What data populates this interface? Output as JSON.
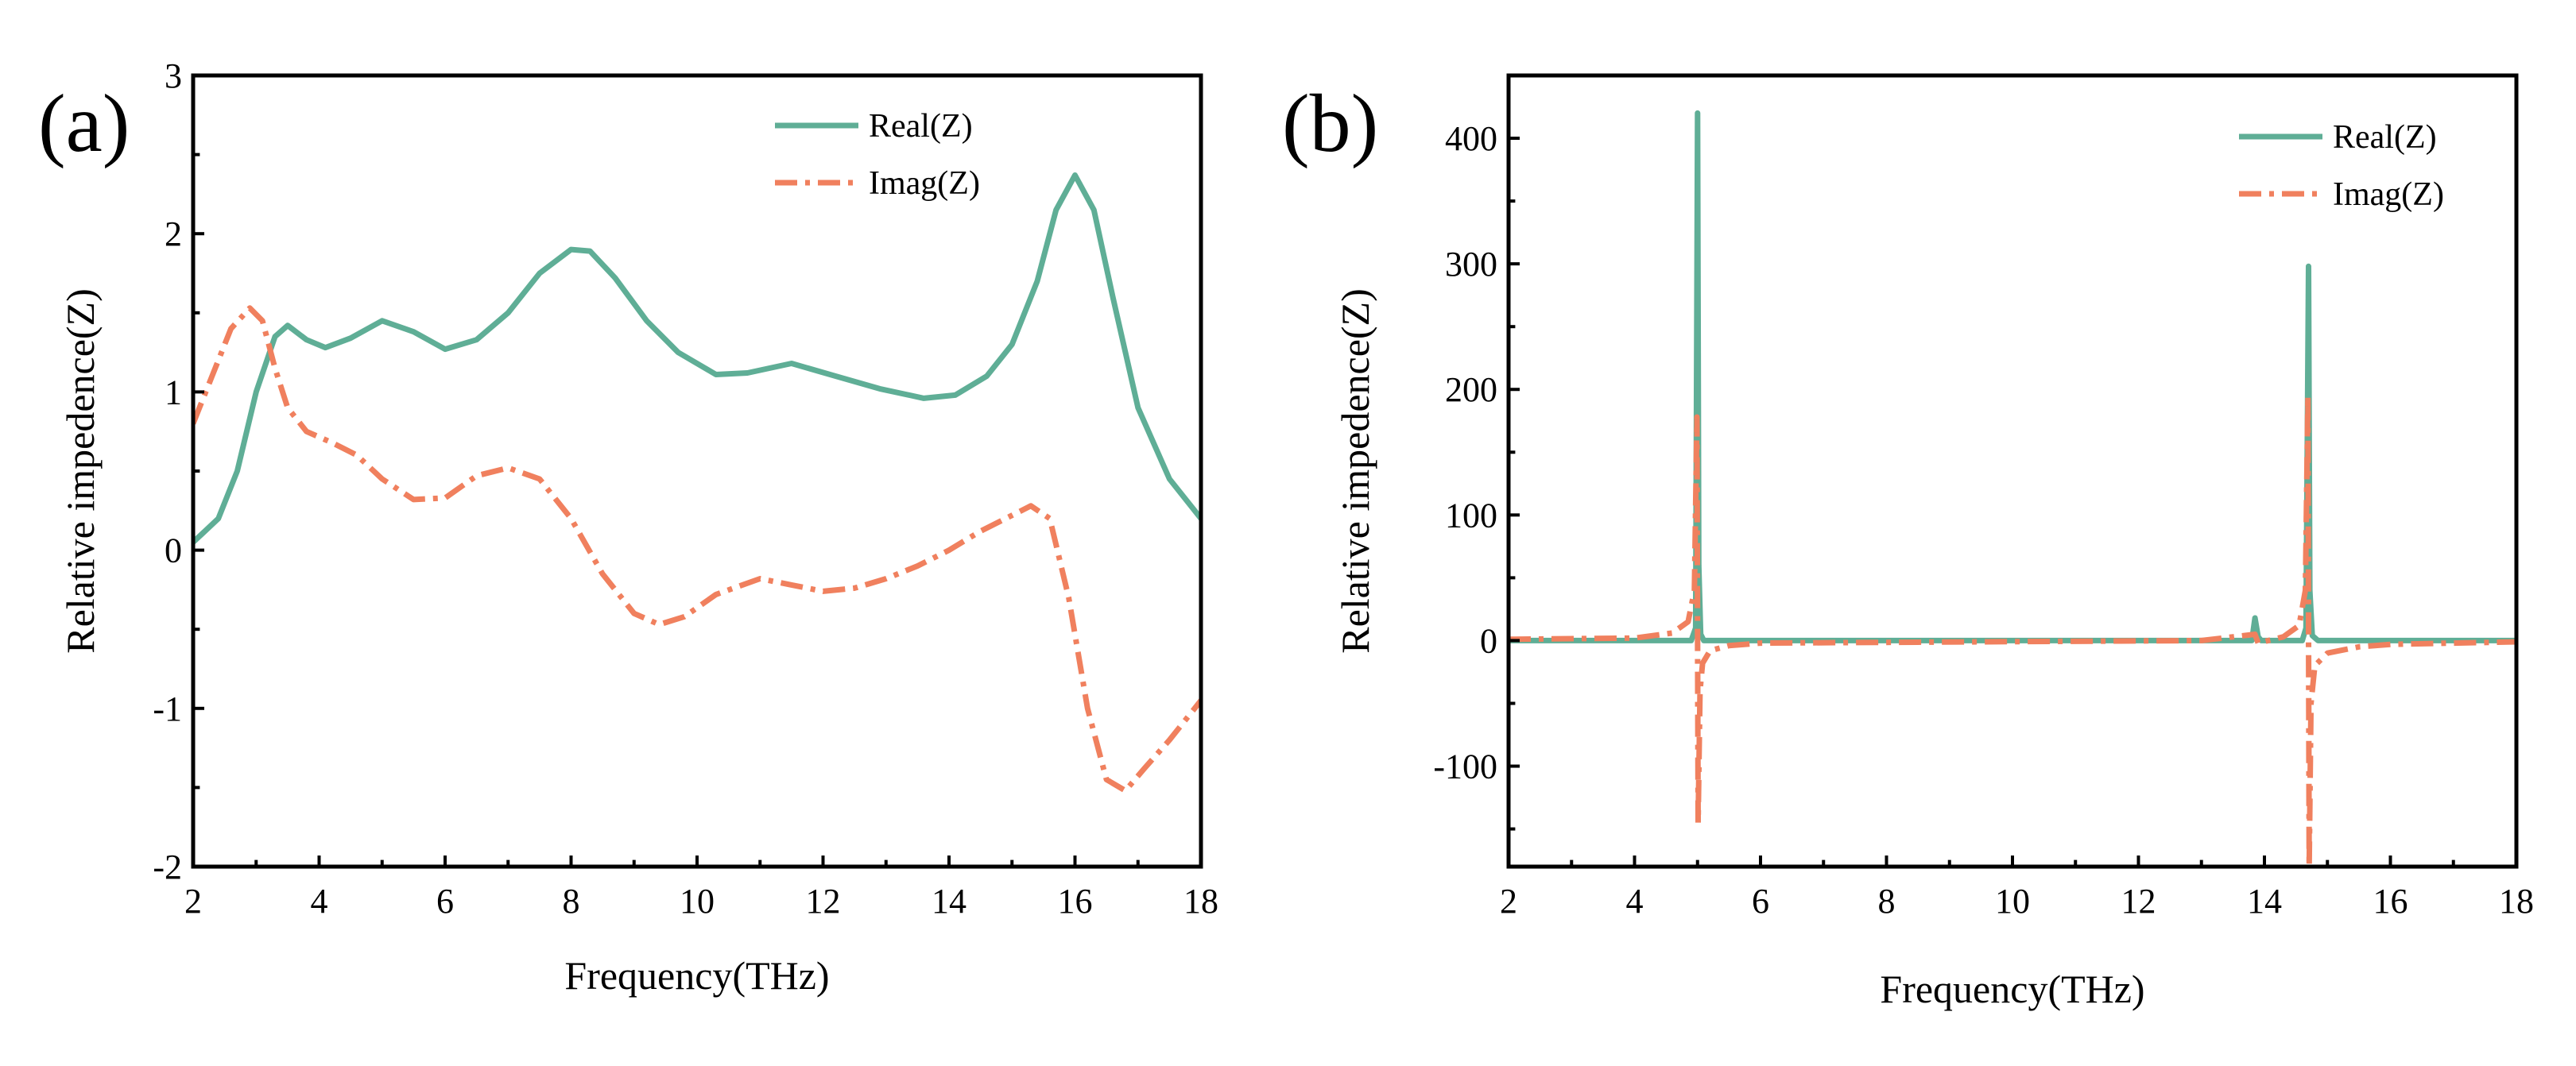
{
  "chart_data": [
    {
      "type": "line",
      "panel_label": "(a)",
      "xlabel": "Frequency(THz)",
      "ylabel": "Relative impedence(Z)",
      "xlim": [
        2,
        18
      ],
      "ylim": [
        -2,
        3
      ],
      "xticks": [
        2,
        4,
        6,
        8,
        10,
        12,
        14,
        16,
        18
      ],
      "yticks": [
        -2,
        -1,
        0,
        1,
        2,
        3
      ],
      "xtick_labels": [
        "2",
        "4",
        "6",
        "8",
        "10",
        "12",
        "14",
        "16",
        "18"
      ],
      "ytick_labels": [
        "-2",
        "-1",
        "0",
        "1",
        "2",
        "3"
      ],
      "legend_position": "top-right",
      "series": [
        {
          "name": "Real(Z)",
          "color": "#5fae96",
          "style": "solid",
          "x": [
            2.0,
            2.4,
            2.7,
            3.0,
            3.3,
            3.5,
            3.8,
            4.1,
            4.5,
            5.0,
            5.5,
            6.0,
            6.5,
            7.0,
            7.5,
            8.0,
            8.3,
            8.7,
            9.2,
            9.7,
            10.3,
            10.8,
            11.5,
            12.2,
            12.9,
            13.6,
            14.1,
            14.6,
            15.0,
            15.4,
            15.7,
            16.0,
            16.3,
            16.6,
            17.0,
            17.5,
            18.0
          ],
          "values": [
            0.05,
            0.2,
            0.5,
            1.0,
            1.35,
            1.42,
            1.33,
            1.28,
            1.34,
            1.45,
            1.38,
            1.27,
            1.33,
            1.5,
            1.75,
            1.9,
            1.89,
            1.72,
            1.45,
            1.25,
            1.11,
            1.12,
            1.18,
            1.1,
            1.02,
            0.96,
            0.98,
            1.1,
            1.3,
            1.7,
            2.15,
            2.37,
            2.15,
            1.6,
            0.9,
            0.45,
            0.2
          ]
        },
        {
          "name": "Imag(Z)",
          "color": "#f0805e",
          "style": "dashdot",
          "x": [
            2.0,
            2.3,
            2.6,
            2.9,
            3.1,
            3.3,
            3.5,
            3.8,
            4.2,
            4.6,
            5.0,
            5.5,
            6.0,
            6.5,
            7.0,
            7.5,
            8.0,
            8.5,
            9.0,
            9.4,
            9.8,
            10.3,
            11.0,
            11.5,
            12.0,
            12.5,
            13.0,
            13.5,
            14.0,
            14.5,
            15.0,
            15.3,
            15.6,
            15.9,
            16.2,
            16.5,
            16.8,
            17.1,
            17.5,
            18.0
          ],
          "values": [
            0.8,
            1.1,
            1.4,
            1.53,
            1.45,
            1.15,
            0.9,
            0.75,
            0.68,
            0.6,
            0.45,
            0.32,
            0.33,
            0.47,
            0.52,
            0.45,
            0.2,
            -0.15,
            -0.4,
            -0.47,
            -0.42,
            -0.28,
            -0.18,
            -0.22,
            -0.26,
            -0.24,
            -0.18,
            -0.1,
            0.0,
            0.12,
            0.22,
            0.28,
            0.2,
            -0.3,
            -1.0,
            -1.45,
            -1.52,
            -1.38,
            -1.2,
            -0.95
          ]
        }
      ]
    },
    {
      "type": "line",
      "panel_label": "(b)",
      "xlabel": "Frequency(THz)",
      "ylabel": "Relative impedence(Z)",
      "xlim": [
        2,
        18
      ],
      "ylim": [
        -180,
        450
      ],
      "xticks": [
        2,
        4,
        6,
        8,
        10,
        12,
        14,
        16,
        18
      ],
      "yticks": [
        -100,
        0,
        100,
        200,
        300,
        400
      ],
      "xtick_labels": [
        "2",
        "4",
        "6",
        "8",
        "10",
        "12",
        "14",
        "16",
        "18"
      ],
      "ytick_labels": [
        "-100",
        "0",
        "100",
        "200",
        "300",
        "400"
      ],
      "legend_position": "top-right",
      "series": [
        {
          "name": "Real(Z)",
          "color": "#5fae96",
          "style": "solid",
          "x": [
            2.0,
            4.9,
            4.97,
            5.0,
            5.02,
            5.05,
            5.1,
            13.8,
            13.85,
            13.9,
            13.95,
            14.6,
            14.66,
            14.7,
            14.72,
            14.76,
            14.85,
            18.0
          ],
          "values": [
            0,
            0,
            10,
            420,
            60,
            5,
            0,
            0,
            18,
            3,
            0,
            0,
            10,
            298,
            40,
            4,
            0,
            0
          ]
        },
        {
          "name": "Imag(Z)",
          "color": "#f0805e",
          "style": "dashdot",
          "x": [
            2.0,
            4.0,
            4.6,
            4.85,
            4.95,
            4.99,
            5.01,
            5.04,
            5.08,
            5.2,
            5.5,
            6.0,
            13.0,
            13.85,
            13.9,
            14.3,
            14.55,
            14.65,
            14.69,
            14.71,
            14.74,
            14.8,
            15.0,
            15.5,
            16.0,
            18.0
          ],
          "values": [
            1,
            2,
            6,
            15,
            40,
            178,
            -145,
            -40,
            -18,
            -8,
            -4,
            -2,
            0,
            5,
            -2,
            3,
            12,
            40,
            195,
            -180,
            -50,
            -20,
            -10,
            -5,
            -3,
            -1
          ]
        }
      ]
    }
  ]
}
